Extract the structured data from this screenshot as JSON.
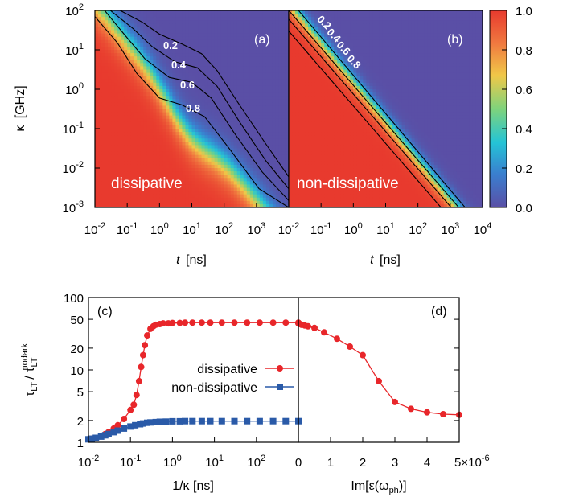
{
  "colorbar": {
    "ticks": [
      "1.0",
      "0.8",
      "0.6",
      "0.4",
      "0.2",
      "0.0"
    ],
    "tick_values": [
      1.0,
      0.8,
      0.6,
      0.4,
      0.2,
      0.0
    ],
    "colors": [
      "#5a4fa6",
      "#3a7fcf",
      "#24c4d6",
      "#7ed37c",
      "#f0c848",
      "#f07a40",
      "#e83a2e"
    ]
  },
  "top": {
    "y_ticks": [
      "10",
      "10",
      "10",
      "10",
      "10",
      "10"
    ],
    "y_exps": [
      "2",
      "1",
      "0",
      "-1",
      "-2",
      "-3"
    ],
    "x_ticks_a": [
      "10",
      "10",
      "10",
      "10",
      "10",
      "10"
    ],
    "x_exps_a": [
      "-2",
      "-1",
      "0",
      "1",
      "2",
      "3"
    ],
    "x_ticks_b": [
      "10",
      "10",
      "10",
      "10",
      "10",
      "10",
      "10"
    ],
    "x_exps_b": [
      "-2",
      "-1",
      "0",
      "1",
      "2",
      "3",
      "4"
    ],
    "ylabel_sym": "κ",
    "ylabel_unit": "[GHz]",
    "xlabel_sym": "t",
    "xlabel_unit": "[ns]"
  },
  "chart_data": [
    {
      "panel": "(a)",
      "type": "heatmap",
      "label": "dissipative",
      "x_axis": "t [ns]",
      "y_axis": "κ [GHz]",
      "xlim": [
        0.01,
        10000
      ],
      "ylim": [
        0.001,
        100
      ],
      "xscale": "log",
      "yscale": "log",
      "zlim": [
        0,
        1
      ],
      "contour_levels": [
        0.2,
        0.4,
        0.6,
        0.8
      ],
      "contour_labels": [
        "0.2",
        "0.4",
        "0.6",
        "0.8"
      ],
      "contours": [
        {
          "level": 0.2,
          "x": [
            0.06,
            0.3,
            1,
            5,
            20,
            60,
            300,
            2000,
            10000
          ],
          "y": [
            100,
            50,
            25,
            14,
            8,
            3,
            0.4,
            0.04,
            0.006
          ]
        },
        {
          "level": 0.4,
          "x": [
            0.03,
            0.15,
            0.6,
            3,
            15,
            60,
            300,
            2000,
            10000
          ],
          "y": [
            100,
            35,
            12,
            5,
            3.5,
            1.2,
            0.15,
            0.015,
            0.003
          ]
        },
        {
          "level": 0.6,
          "x": [
            0.02,
            0.08,
            0.35,
            2,
            10,
            40,
            200,
            1500,
            10000
          ],
          "y": [
            100,
            25,
            6,
            2,
            1.5,
            0.6,
            0.08,
            0.008,
            0.0015
          ]
        },
        {
          "level": 0.8,
          "x": [
            0.01,
            0.05,
            0.2,
            1,
            5,
            25,
            150,
            1200,
            10000
          ],
          "y": [
            70,
            15,
            2.5,
            0.6,
            0.4,
            0.2,
            0.03,
            0.003,
            0.001
          ]
        }
      ]
    },
    {
      "panel": "(b)",
      "type": "heatmap",
      "label": "non-dissipative",
      "x_axis": "t [ns]",
      "y_axis": "κ [GHz]",
      "xlim": [
        0.01,
        10000
      ],
      "ylim": [
        0.001,
        100
      ],
      "xscale": "log",
      "yscale": "log",
      "zlim": [
        0,
        1
      ],
      "contour_levels": [
        0.2,
        0.4,
        0.6,
        0.8
      ],
      "contour_labels": [
        "0.2",
        "0.4",
        "0.6",
        "0.8"
      ],
      "contours": [
        {
          "level": 0.2,
          "x": [
            0.02,
            10000
          ],
          "y": [
            100,
            0.0003
          ]
        },
        {
          "level": 0.4,
          "x": [
            0.01,
            10000
          ],
          "y": [
            100,
            0.0002
          ]
        },
        {
          "level": 0.6,
          "x": [
            0.01,
            10000
          ],
          "y": [
            60,
            0.00012
          ]
        },
        {
          "level": 0.8,
          "x": [
            0.01,
            10000
          ],
          "y": [
            30,
            6e-05
          ]
        }
      ]
    },
    {
      "panel": "(c)",
      "type": "scatter",
      "x_axis": "1/κ [ns]",
      "y_axis": "τLT / τLT nodark",
      "xlim": [
        0.01,
        1000
      ],
      "ylim": [
        1,
        100
      ],
      "xscale": "log",
      "yscale": "log",
      "series": [
        {
          "name": "dissipative",
          "color": "#e8262a",
          "marker": "circle",
          "x": [
            0.01,
            0.012,
            0.015,
            0.02,
            0.025,
            0.03,
            0.04,
            0.05,
            0.07,
            0.1,
            0.12,
            0.14,
            0.16,
            0.18,
            0.2,
            0.22,
            0.25,
            0.3,
            0.35,
            0.4,
            0.5,
            0.6,
            0.8,
            1,
            1.5,
            2,
            3,
            5,
            8,
            15,
            30,
            60,
            120,
            250,
            500,
            1000
          ],
          "y": [
            1.1,
            1.12,
            1.15,
            1.22,
            1.3,
            1.38,
            1.55,
            1.72,
            2.1,
            2.8,
            3.3,
            4.5,
            7,
            11,
            16,
            22,
            30,
            37,
            40,
            42,
            43,
            44,
            44,
            44.5,
            44.5,
            45,
            45,
            45,
            45,
            45,
            45,
            45,
            45,
            45,
            45,
            45
          ]
        },
        {
          "name": "non-dissipative",
          "color": "#2a5aa8",
          "marker": "square",
          "x": [
            0.01,
            0.012,
            0.015,
            0.02,
            0.025,
            0.03,
            0.04,
            0.05,
            0.07,
            0.1,
            0.13,
            0.17,
            0.2,
            0.25,
            0.3,
            0.4,
            0.5,
            0.7,
            1,
            1.5,
            2,
            3,
            5,
            8,
            15,
            30,
            60,
            120,
            250,
            500,
            1000
          ],
          "y": [
            1.1,
            1.12,
            1.15,
            1.2,
            1.25,
            1.3,
            1.38,
            1.45,
            1.55,
            1.65,
            1.72,
            1.78,
            1.82,
            1.86,
            1.88,
            1.9,
            1.92,
            1.93,
            1.95,
            1.95,
            1.96,
            1.96,
            1.96,
            1.96,
            1.96,
            1.96,
            1.96,
            1.96,
            1.96,
            1.96,
            1.96
          ]
        }
      ],
      "legend": [
        "dissipative",
        "non-dissipative"
      ],
      "legend_position": "center-right",
      "x_tick_bases": [
        "10",
        "10",
        "10",
        "10",
        "10",
        "10"
      ],
      "x_tick_exps": [
        "-2",
        "-1",
        "0",
        "1",
        "2",
        ""
      ],
      "y_ticks": [
        "100",
        "50",
        "20",
        "10",
        "5",
        "2",
        "1"
      ],
      "y_tick_values": [
        100,
        50,
        20,
        10,
        5,
        2,
        1
      ]
    },
    {
      "panel": "(d)",
      "type": "line",
      "x_axis": "Im[ε(ωph)]",
      "xlim": [
        0,
        5e-06
      ],
      "ylim": [
        1,
        100
      ],
      "yscale": "log",
      "series": [
        {
          "name": "",
          "color": "#e8262a",
          "marker": "circle",
          "x": [
            0,
            1e-08,
            2e-08,
            5e-08,
            1e-07,
            2e-07,
            3e-07,
            5e-07,
            8e-07,
            1.2e-06,
            1.6e-06,
            2e-06,
            2.5e-06,
            3e-06,
            3.5e-06,
            4e-06,
            4.5e-06,
            5e-06
          ],
          "y": [
            44,
            44,
            43.5,
            43,
            42,
            41,
            40,
            38,
            33,
            27,
            21,
            16,
            7,
            3.6,
            2.9,
            2.6,
            2.45,
            2.4
          ]
        }
      ],
      "x_ticks": [
        "0",
        "1",
        "2",
        "3",
        "4",
        "5×10"
      ],
      "x_tick_values": [
        0,
        1e-06,
        2e-06,
        3e-06,
        4e-06,
        5e-06
      ],
      "x_multiplier_exp": "-6"
    }
  ],
  "labels": {
    "panel_a": "(a)",
    "panel_b": "(b)",
    "panel_c": "(c)",
    "panel_d": "(d)",
    "dissipative": "dissipative",
    "non_dissipative": "non-dissipative",
    "legend_dissipative": "dissipative",
    "legend_non_dissipative": "non-dissipative",
    "c_xlabel": "1/κ [ns]",
    "c_ylabel_main": "τ",
    "c_ylabel_sub1": "LT",
    "c_ylabel_slash": "/ τ",
    "c_ylabel_sub2": "LT",
    "c_ylabel_sup": "nodark",
    "d_xlabel_main": "Im[ε(ω",
    "d_xlabel_sub": "ph",
    "d_xlabel_end": ")]"
  }
}
